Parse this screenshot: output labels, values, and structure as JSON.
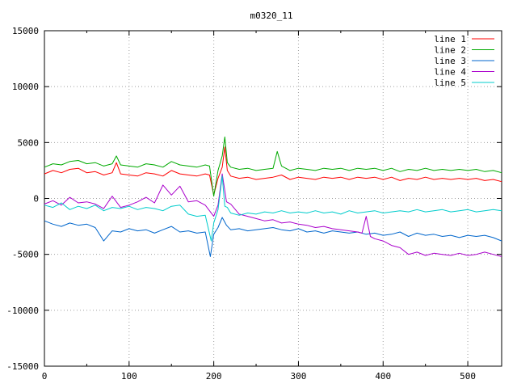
{
  "chart_data": {
    "type": "line",
    "title": "m0320_11",
    "xlabel": "",
    "ylabel": "",
    "xlim": [
      0,
      540
    ],
    "ylim": [
      -15000,
      15000
    ],
    "xticks": [
      0,
      100,
      200,
      300,
      400,
      500
    ],
    "yticks": [
      -15000,
      -10000,
      -5000,
      0,
      5000,
      10000,
      15000
    ],
    "grid": true,
    "legend_position": "top-right",
    "series": [
      {
        "name": "line 1",
        "color": "#ff0000",
        "x": [
          0,
          10,
          20,
          30,
          40,
          50,
          60,
          70,
          80,
          85,
          90,
          100,
          110,
          120,
          130,
          140,
          150,
          160,
          170,
          180,
          190,
          195,
          200,
          205,
          210,
          213,
          216,
          220,
          230,
          240,
          250,
          260,
          270,
          280,
          290,
          300,
          310,
          320,
          330,
          340,
          350,
          360,
          370,
          380,
          390,
          400,
          410,
          420,
          430,
          440,
          450,
          460,
          470,
          480,
          490,
          500,
          510,
          520,
          530,
          540
        ],
        "y": [
          2200,
          2500,
          2300,
          2600,
          2700,
          2300,
          2400,
          2100,
          2300,
          3200,
          2200,
          2100,
          2000,
          2300,
          2200,
          2000,
          2500,
          2200,
          2100,
          2000,
          2200,
          2100,
          300,
          1800,
          2800,
          4600,
          2500,
          2000,
          1800,
          1900,
          1700,
          1800,
          1900,
          2100,
          1700,
          1900,
          1800,
          1700,
          1900,
          1800,
          1900,
          1700,
          1900,
          1800,
          1900,
          1700,
          1900,
          1600,
          1800,
          1700,
          1900,
          1700,
          1800,
          1700,
          1800,
          1700,
          1800,
          1600,
          1700,
          1500
        ]
      },
      {
        "name": "line 2",
        "color": "#00aa00",
        "x": [
          0,
          10,
          20,
          30,
          40,
          50,
          60,
          70,
          80,
          85,
          90,
          100,
          110,
          120,
          130,
          140,
          150,
          160,
          170,
          180,
          190,
          195,
          200,
          205,
          210,
          213,
          216,
          220,
          230,
          240,
          250,
          260,
          270,
          275,
          280,
          290,
          300,
          310,
          320,
          330,
          340,
          350,
          360,
          370,
          380,
          390,
          400,
          410,
          420,
          430,
          440,
          450,
          460,
          470,
          480,
          490,
          500,
          510,
          520,
          530,
          540
        ],
        "y": [
          2800,
          3100,
          3000,
          3300,
          3400,
          3100,
          3200,
          2900,
          3100,
          3800,
          3000,
          2900,
          2800,
          3100,
          3000,
          2800,
          3300,
          3000,
          2900,
          2800,
          3000,
          2900,
          200,
          2500,
          3800,
          5500,
          3200,
          2800,
          2600,
          2700,
          2500,
          2600,
          2700,
          4200,
          2900,
          2500,
          2700,
          2600,
          2500,
          2700,
          2600,
          2700,
          2500,
          2700,
          2600,
          2700,
          2500,
          2700,
          2400,
          2600,
          2500,
          2700,
          2500,
          2600,
          2500,
          2600,
          2500,
          2600,
          2400,
          2500,
          2300
        ]
      },
      {
        "name": "line 3",
        "color": "#0066cc",
        "x": [
          0,
          10,
          20,
          30,
          40,
          50,
          60,
          70,
          80,
          90,
          100,
          110,
          120,
          130,
          140,
          150,
          160,
          170,
          180,
          190,
          196,
          200,
          205,
          210,
          215,
          220,
          230,
          240,
          250,
          260,
          270,
          280,
          290,
          300,
          310,
          320,
          330,
          340,
          350,
          360,
          370,
          380,
          390,
          400,
          410,
          420,
          430,
          440,
          450,
          460,
          470,
          480,
          490,
          500,
          510,
          520,
          530,
          540
        ],
        "y": [
          -2000,
          -2300,
          -2500,
          -2200,
          -2400,
          -2300,
          -2600,
          -3800,
          -2900,
          -3000,
          -2700,
          -2900,
          -2800,
          -3100,
          -2800,
          -2500,
          -3000,
          -2900,
          -3100,
          -3000,
          -5200,
          -3200,
          -2600,
          -1700,
          -2400,
          -2800,
          -2700,
          -2900,
          -2800,
          -2700,
          -2600,
          -2800,
          -2900,
          -2700,
          -3000,
          -2900,
          -3100,
          -2900,
          -3000,
          -3100,
          -3000,
          -3200,
          -3100,
          -3300,
          -3200,
          -3000,
          -3400,
          -3100,
          -3300,
          -3200,
          -3400,
          -3300,
          -3500,
          -3300,
          -3400,
          -3300,
          -3500,
          -3800
        ]
      },
      {
        "name": "line 4",
        "color": "#aa00cc",
        "x": [
          0,
          10,
          20,
          30,
          40,
          50,
          60,
          70,
          80,
          90,
          100,
          110,
          120,
          130,
          140,
          150,
          160,
          170,
          180,
          190,
          200,
          205,
          210,
          215,
          220,
          230,
          240,
          250,
          260,
          270,
          280,
          290,
          300,
          310,
          320,
          330,
          340,
          350,
          360,
          370,
          375,
          380,
          385,
          390,
          400,
          410,
          420,
          430,
          440,
          450,
          460,
          470,
          480,
          490,
          500,
          510,
          520,
          530,
          540
        ],
        "y": [
          -500,
          -200,
          -600,
          100,
          -400,
          -300,
          -500,
          -900,
          200,
          -800,
          -600,
          -300,
          100,
          -400,
          1200,
          300,
          1100,
          -300,
          -200,
          -600,
          -1600,
          -600,
          2200,
          -300,
          -500,
          -1400,
          -1600,
          -1800,
          -2000,
          -1900,
          -2200,
          -2100,
          -2300,
          -2400,
          -2600,
          -2500,
          -2700,
          -2800,
          -2900,
          -3000,
          -3100,
          -1600,
          -3400,
          -3600,
          -3800,
          -4200,
          -4400,
          -5000,
          -4800,
          -5100,
          -4900,
          -5000,
          -5100,
          -4900,
          -5100,
          -5000,
          -4800,
          -5000,
          -5200
        ]
      },
      {
        "name": "line 5",
        "color": "#00cccc",
        "x": [
          0,
          10,
          20,
          30,
          40,
          50,
          60,
          70,
          80,
          90,
          100,
          110,
          120,
          130,
          140,
          150,
          160,
          170,
          180,
          190,
          197,
          200,
          205,
          210,
          213,
          216,
          220,
          230,
          240,
          250,
          260,
          270,
          280,
          290,
          300,
          310,
          320,
          330,
          340,
          350,
          360,
          370,
          380,
          390,
          400,
          410,
          420,
          430,
          440,
          450,
          460,
          470,
          480,
          490,
          500,
          510,
          520,
          530,
          540
        ],
        "y": [
          -600,
          -800,
          -400,
          -1000,
          -700,
          -900,
          -600,
          -1100,
          -800,
          -900,
          -700,
          -1000,
          -800,
          -900,
          -1100,
          -700,
          -600,
          -1400,
          -1600,
          -1500,
          -3800,
          -2200,
          -1000,
          2000,
          -700,
          -800,
          -1300,
          -1500,
          -1300,
          -1400,
          -1200,
          -1300,
          -1100,
          -1300,
          -1200,
          -1300,
          -1100,
          -1300,
          -1200,
          -1400,
          -1100,
          -1300,
          -1200,
          -1100,
          -1300,
          -1200,
          -1100,
          -1200,
          -1000,
          -1200,
          -1100,
          -1000,
          -1200,
          -1100,
          -1000,
          -1200,
          -1100,
          -1000,
          -1100
        ]
      }
    ]
  }
}
